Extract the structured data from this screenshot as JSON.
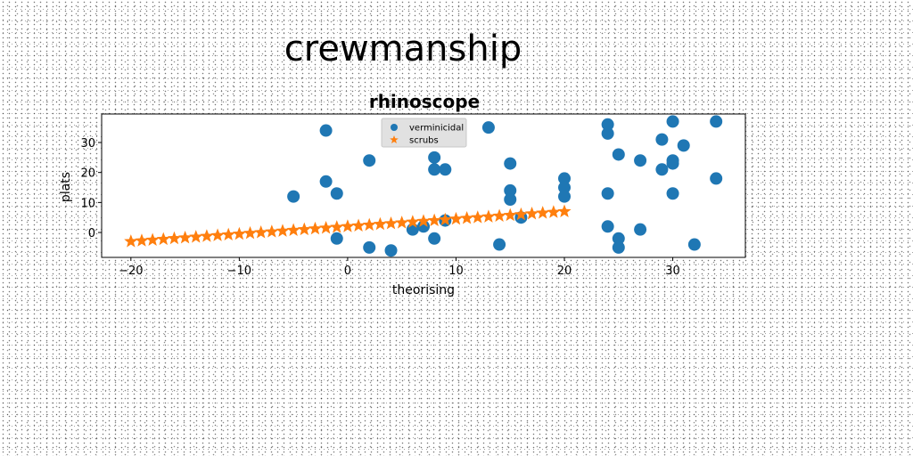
{
  "chart_data": {
    "type": "scatter",
    "suptitle": "crewmanship",
    "title": "rhinoscope",
    "xlabel": "theorising",
    "ylabel": "plats",
    "xlim": [
      -22.7,
      36.7
    ],
    "ylim": [
      -8.3,
      39.5
    ],
    "xticks": [
      -20,
      -10,
      0,
      10,
      20,
      30
    ],
    "yticks": [
      0,
      10,
      20,
      30
    ],
    "grid": false,
    "legend_position": "upper-center",
    "series": [
      {
        "name": "verminicidal",
        "marker": "circle",
        "color": "#1f77b4",
        "points": [
          [
            -5,
            12
          ],
          [
            -2,
            34
          ],
          [
            -2,
            17
          ],
          [
            -1,
            13
          ],
          [
            -1,
            -2
          ],
          [
            2,
            24
          ],
          [
            2,
            -5
          ],
          [
            4,
            -6
          ],
          [
            6,
            1
          ],
          [
            7,
            2
          ],
          [
            8,
            25
          ],
          [
            8,
            21
          ],
          [
            8,
            -2
          ],
          [
            9,
            21
          ],
          [
            9,
            4
          ],
          [
            13,
            35
          ],
          [
            14,
            -4
          ],
          [
            15,
            23
          ],
          [
            15,
            14
          ],
          [
            15,
            11
          ],
          [
            16,
            5
          ],
          [
            20,
            18
          ],
          [
            20,
            15
          ],
          [
            20,
            12
          ],
          [
            24,
            36
          ],
          [
            24,
            33
          ],
          [
            24,
            13
          ],
          [
            24,
            2
          ],
          [
            25,
            26
          ],
          [
            25,
            -2
          ],
          [
            25,
            -5
          ],
          [
            27,
            24
          ],
          [
            27,
            1
          ],
          [
            29,
            31
          ],
          [
            29,
            21
          ],
          [
            30,
            37
          ],
          [
            30,
            24
          ],
          [
            30,
            23
          ],
          [
            30,
            13
          ],
          [
            31,
            29
          ],
          [
            32,
            -4
          ],
          [
            34,
            37
          ],
          [
            34,
            18
          ]
        ]
      },
      {
        "name": "scrubs",
        "marker": "star",
        "color": "#ff7f0e",
        "points": [
          [
            -20,
            -3.0
          ],
          [
            -19,
            -2.75
          ],
          [
            -18,
            -2.5
          ],
          [
            -17,
            -2.25
          ],
          [
            -16,
            -2.0
          ],
          [
            -15,
            -1.75
          ],
          [
            -14,
            -1.5
          ],
          [
            -13,
            -1.25
          ],
          [
            -12,
            -1.0
          ],
          [
            -11,
            -0.75
          ],
          [
            -10,
            -0.5
          ],
          [
            -9,
            -0.25
          ],
          [
            -8,
            0.0
          ],
          [
            -7,
            0.25
          ],
          [
            -6,
            0.5
          ],
          [
            -5,
            0.75
          ],
          [
            -4,
            1.0
          ],
          [
            -3,
            1.25
          ],
          [
            -2,
            1.5
          ],
          [
            -1,
            1.75
          ],
          [
            0,
            2.0
          ],
          [
            1,
            2.25
          ],
          [
            2,
            2.5
          ],
          [
            3,
            2.75
          ],
          [
            4,
            3.0
          ],
          [
            5,
            3.25
          ],
          [
            6,
            3.5
          ],
          [
            7,
            3.75
          ],
          [
            8,
            4.0
          ],
          [
            9,
            4.25
          ],
          [
            10,
            4.5
          ],
          [
            11,
            4.75
          ],
          [
            12,
            5.0
          ],
          [
            13,
            5.25
          ],
          [
            14,
            5.5
          ],
          [
            15,
            5.75
          ],
          [
            16,
            6.0
          ],
          [
            17,
            6.25
          ],
          [
            18,
            6.5
          ],
          [
            19,
            6.75
          ],
          [
            20,
            7.0
          ]
        ]
      }
    ]
  }
}
